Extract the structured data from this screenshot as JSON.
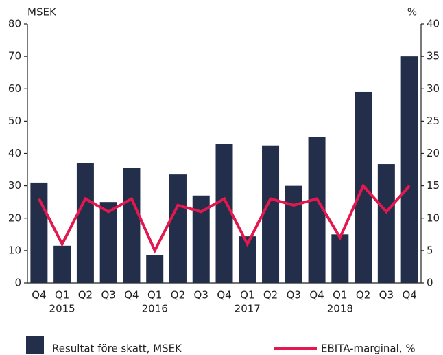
{
  "chart_data": {
    "type": "bar-line",
    "y_label": "MSEK",
    "y2_label": "%",
    "categories": [
      "Q4",
      "Q1",
      "Q2",
      "Q3",
      "Q4",
      "Q1",
      "Q2",
      "Q3",
      "Q4",
      "Q1",
      "Q2",
      "Q3",
      "Q4",
      "Q1",
      "Q2",
      "Q3",
      "Q4"
    ],
    "category_years": [
      null,
      "2015",
      null,
      null,
      null,
      "2016",
      null,
      null,
      null,
      "2017",
      null,
      null,
      null,
      "2018",
      null,
      null,
      null
    ],
    "series": [
      {
        "name": "Resultat före skatt, MSEK",
        "type": "bar",
        "color": "#232e4a",
        "values": [
          31,
          11.5,
          37,
          25,
          35.5,
          8.7,
          33.5,
          27,
          43,
          14.4,
          42.5,
          30,
          45,
          15,
          59,
          36.7,
          70
        ]
      },
      {
        "name": "EBITA-marginal, %",
        "type": "line",
        "axis": "y2",
        "color": "#e2184f",
        "values": [
          13,
          6,
          13,
          11,
          13,
          5,
          12,
          11,
          13,
          6,
          13,
          12,
          13,
          7,
          15,
          11,
          15
        ]
      }
    ],
    "ylim": [
      0,
      80
    ],
    "yticks": [
      0,
      10,
      20,
      30,
      40,
      50,
      60,
      70,
      80
    ],
    "y2lim": [
      0,
      40
    ],
    "y2ticks": [
      0,
      5,
      10,
      15,
      20,
      25,
      30,
      35,
      40
    ]
  }
}
